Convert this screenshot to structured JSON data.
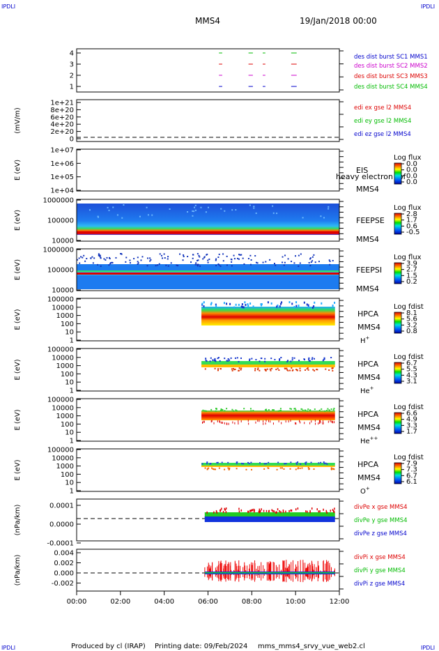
{
  "header": {
    "corner_left_top": "IPDLI",
    "corner_right_top": "IPDLI",
    "corner_left_bottom": "IPDLI",
    "corner_right_bottom": "IPDLI",
    "spacecraft": "MMS4",
    "date": "19/Jan/2018 00:00"
  },
  "footer": {
    "produced": "Produced by cl (IRAP)",
    "printing": "Printing date: 09/Feb/2024",
    "script": "mms_mms4_srvy_vue_web2.cl"
  },
  "chart_data": {
    "type": "multi-panel time series",
    "x_ticks": [
      "00:00",
      "02:00",
      "04:00",
      "06:00",
      "08:00",
      "10:00",
      "12:00"
    ],
    "x_range_hours": [
      0,
      12
    ],
    "panels": [
      {
        "id": "burst",
        "yticks": [
          "4",
          "3",
          "2",
          "1"
        ],
        "legend": [
          {
            "text": "des dist burst SC1 MMS1",
            "color": "#0000cc"
          },
          {
            "text": "des dist burst SC2 MMS2",
            "color": "#cc00cc"
          },
          {
            "text": "des dist burst SC3 MMS3",
            "color": "#dd0000"
          },
          {
            "text": "des dist burst SC4 MMS4",
            "color": "#00bb00"
          }
        ],
        "bursts_hours": [
          [
            6.5,
            6.65
          ],
          [
            7.85,
            8.05
          ],
          [
            8.5,
            8.62
          ],
          [
            9.8,
            10.05
          ]
        ]
      },
      {
        "id": "edi",
        "ylabel": "(mV/m)",
        "yticks": [
          "1e+21",
          "8e+20",
          "6e+20",
          "4e+20",
          "2e+20",
          "0"
        ],
        "legend": [
          {
            "text": "edi ex gse l2 MMS4",
            "color": "#dd0000"
          },
          {
            "text": "edi ey gse l2 MMS4",
            "color": "#00bb00"
          },
          {
            "text": "edi ez gse l2 MMS4",
            "color": "#0000cc"
          }
        ]
      },
      {
        "id": "eis",
        "ylabel": "E (eV)",
        "yticks": [
          "1e+07",
          "1e+06",
          "1e+05",
          "1e+04"
        ],
        "instrument": "EIS",
        "sc": "MMS4",
        "overlay_text": "heavy electron tof",
        "cbar_title": "Log flux",
        "cbar_ticks": [
          "0.0",
          "0.0",
          "0.0",
          "0.0"
        ]
      },
      {
        "id": "feepse",
        "ylabel": "E (eV)",
        "yticks": [
          "1000000",
          "100000",
          "10000"
        ],
        "instrument": "FEEPSE",
        "sc": "MMS4",
        "cbar_title": "Log flux",
        "cbar_ticks": [
          "2.8",
          "1.7",
          "0.6",
          "-0.5"
        ],
        "coverage_hours": [
          0,
          12
        ]
      },
      {
        "id": "feepsi",
        "ylabel": "E (eV)",
        "yticks": [
          "1000000",
          "100000",
          "10000"
        ],
        "instrument": "FEEPSI",
        "sc": "MMS4",
        "cbar_title": "Log flux",
        "cbar_ticks": [
          "3.9",
          "2.7",
          "1.5",
          "0.2"
        ],
        "coverage_hours": [
          0,
          12
        ]
      },
      {
        "id": "hpca_h",
        "ylabel": "E (eV)",
        "yticks": [
          "100000",
          "10000",
          "1000",
          "100",
          "10",
          "1"
        ],
        "instrument": "HPCA",
        "sc": "MMS4",
        "species": "H",
        "species_sup": "+",
        "cbar_title": "Log fdist",
        "cbar_ticks": [
          "8.1",
          "5.6",
          "3.2",
          "0.8"
        ],
        "coverage_hours": [
          5.7,
          11.8
        ]
      },
      {
        "id": "hpca_he",
        "ylabel": "E (eV)",
        "yticks": [
          "100000",
          "10000",
          "1000",
          "100",
          "10",
          "1"
        ],
        "instrument": "HPCA",
        "sc": "MMS4",
        "species": "He",
        "species_sup": "+",
        "cbar_title": "Log fdist",
        "cbar_ticks": [
          "6.7",
          "5.5",
          "4.3",
          "3.1"
        ],
        "coverage_hours": [
          5.7,
          11.8
        ]
      },
      {
        "id": "hpca_hepp",
        "ylabel": "E (eV)",
        "yticks": [
          "100000",
          "10000",
          "1000",
          "100",
          "10",
          "1"
        ],
        "instrument": "HPCA",
        "sc": "MMS4",
        "species": "He",
        "species_sup": "++",
        "cbar_title": "Log fdist",
        "cbar_ticks": [
          "6.6",
          "4.9",
          "3.3",
          "1.7"
        ],
        "coverage_hours": [
          5.7,
          11.8
        ]
      },
      {
        "id": "hpca_o",
        "ylabel": "E (eV)",
        "yticks": [
          "100000",
          "10000",
          "1000",
          "100",
          "10",
          "1"
        ],
        "instrument": "HPCA",
        "sc": "MMS4",
        "species": "O",
        "species_sup": "+",
        "cbar_title": "Log fdist",
        "cbar_ticks": [
          "7.9",
          "7.3",
          "6.7",
          "6.1"
        ],
        "coverage_hours": [
          5.7,
          11.8
        ]
      },
      {
        "id": "divpe",
        "ylabel": "(nPa/km)",
        "yticks": [
          "0.0001",
          "0.0000",
          "-0.0001"
        ],
        "ylim": [
          -0.00018,
          0.00013
        ],
        "legend": [
          {
            "text": "divPe x gse MMS4",
            "color": "#dd0000"
          },
          {
            "text": "divPe y gse MMS4",
            "color": "#00bb00"
          },
          {
            "text": "divPe z gse MMS4",
            "color": "#0000cc"
          }
        ],
        "coverage_hours": [
          5.85,
          11.8
        ]
      },
      {
        "id": "divpi",
        "ylabel": "(nPa/km)",
        "yticks": [
          "0.004",
          "0.002",
          "0.000",
          "-0.002"
        ],
        "ylim": [
          -0.0038,
          0.0045
        ],
        "legend": [
          {
            "text": "divPi x gse MMS4",
            "color": "#dd0000"
          },
          {
            "text": "divPi y gse MMS4",
            "color": "#00bb00"
          },
          {
            "text": "divPi z gse MMS4",
            "color": "#0000cc"
          }
        ],
        "coverage_hours": [
          5.85,
          11.8
        ]
      }
    ]
  }
}
